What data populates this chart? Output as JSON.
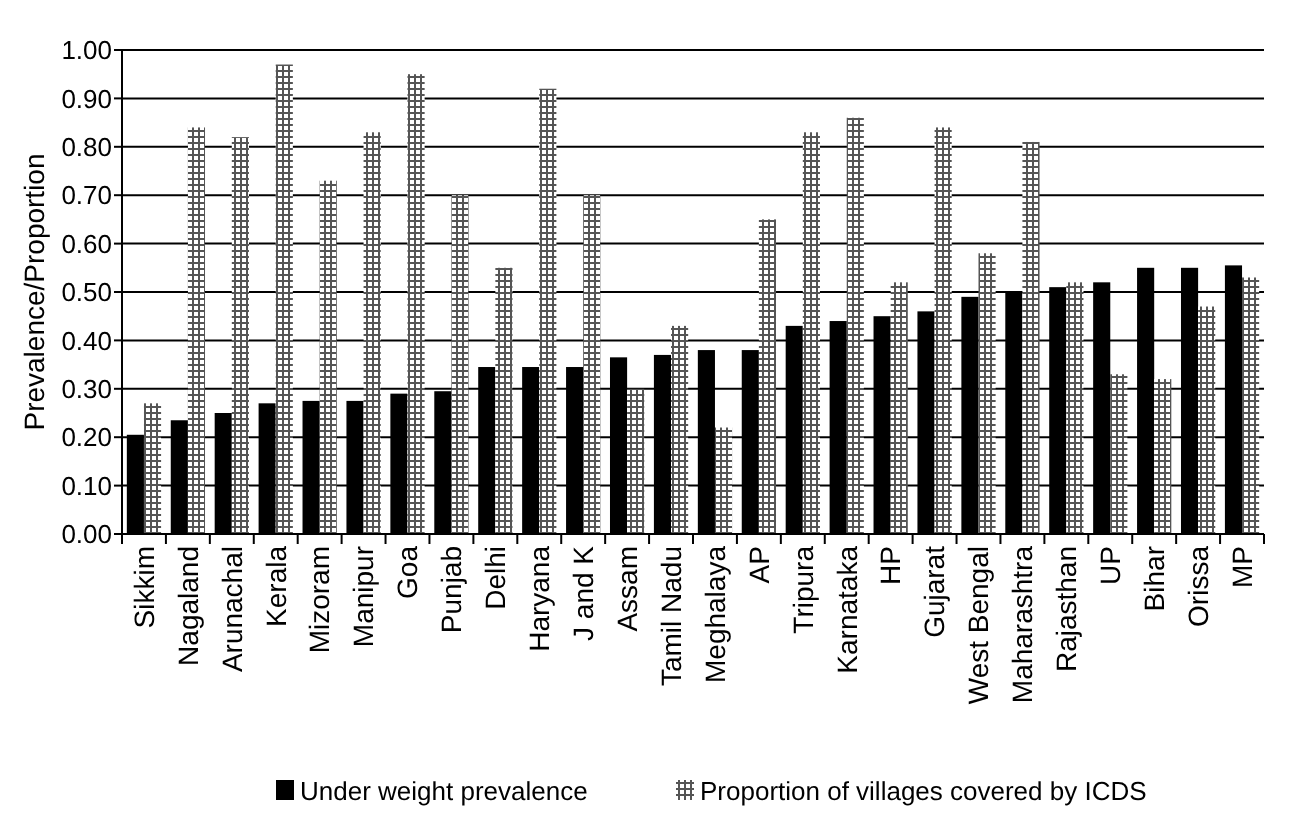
{
  "chart_data": {
    "type": "bar",
    "ylabel": "Prevalence/Proportion",
    "categories": [
      "Sikkim",
      "Nagaland",
      "Arunachal",
      "Kerala",
      "Mizoram",
      "Manipur",
      "Goa",
      "Punjab",
      "Delhi",
      "Haryana",
      "J and K",
      "Assam",
      "Tamil Nadu",
      "Meghalaya",
      "AP",
      "Tripura",
      "Karnataka",
      "HP",
      "Gujarat",
      "West Bengal",
      "Maharashtra",
      "Rajasthan",
      "UP",
      "Bihar",
      "Orissa",
      "MP"
    ],
    "series": [
      {
        "name": "Under weight prevalence",
        "color": "#000000",
        "values": [
          0.205,
          0.235,
          0.25,
          0.27,
          0.275,
          0.275,
          0.29,
          0.295,
          0.345,
          0.345,
          0.345,
          0.365,
          0.37,
          0.38,
          0.38,
          0.43,
          0.44,
          0.45,
          0.46,
          0.49,
          0.5,
          0.51,
          0.52,
          0.55,
          0.55,
          0.555
        ]
      },
      {
        "name": "Proportion of villages covered by ICDS",
        "color": "#555555",
        "values": [
          0.27,
          0.84,
          0.82,
          0.97,
          0.73,
          0.83,
          0.95,
          0.7,
          0.55,
          0.92,
          0.7,
          0.3,
          0.43,
          0.22,
          0.65,
          0.83,
          0.86,
          0.52,
          0.84,
          0.58,
          0.81,
          0.52,
          0.33,
          0.32,
          0.47,
          0.53
        ]
      }
    ],
    "ylim": [
      0,
      1
    ],
    "yticks": [
      {
        "value": 0,
        "label": "0.00"
      },
      {
        "value": 0.1,
        "label": "0.10"
      },
      {
        "value": 0.2,
        "label": "0.20"
      },
      {
        "value": 0.3,
        "label": "0.30"
      },
      {
        "value": 0.4,
        "label": "0.40"
      },
      {
        "value": 0.5,
        "label": "0.50"
      },
      {
        "value": 0.6,
        "label": "0.60"
      },
      {
        "value": 0.7,
        "label": "0.70"
      },
      {
        "value": 0.8,
        "label": "0.80"
      },
      {
        "value": 0.9,
        "label": "0.90"
      },
      {
        "value": 1,
        "label": "1.00"
      }
    ],
    "grid": "y",
    "legend": "bottom"
  }
}
